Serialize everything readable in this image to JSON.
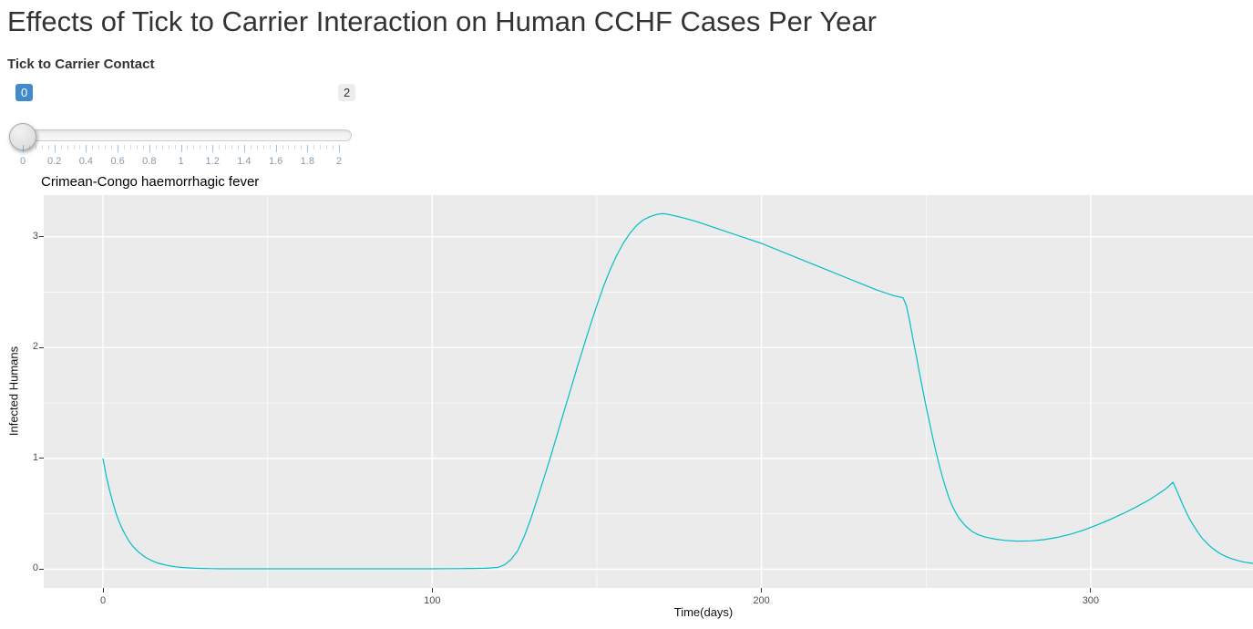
{
  "page": {
    "title": "Effects of Tick to Carrier Interaction on Human CCHF Cases Per Year"
  },
  "slider": {
    "label": "Tick to Carrier Contact",
    "value": "0",
    "max": "2",
    "tick_labels": [
      "0",
      "0.2",
      "0.4",
      "0.6",
      "0.8",
      "1",
      "1.2",
      "1.4",
      "1.6",
      "1.8",
      "2"
    ],
    "minor_ticks_per_interval": 4,
    "accent_color": "#428bca"
  },
  "chart_data": {
    "type": "line",
    "title": "Crimean-Congo haemorrhagic fever",
    "xlabel": "Time(days)",
    "ylabel": "Infected Humans",
    "x_ticks": [
      0,
      100,
      200,
      300
    ],
    "x_minor_ticks": [
      50,
      150,
      250,
      350
    ],
    "y_ticks": [
      0,
      1,
      2,
      3
    ],
    "y_minor_ticks": [
      0.5,
      1.5,
      2.5
    ],
    "xlim": [
      -18,
      349.3
    ],
    "ylim": [
      -0.169,
      3.376
    ],
    "grid": true,
    "legend": "none",
    "panel_color": "#EBEBEB",
    "grid_color": "#FFFFFF",
    "line_color": "#00BFC4",
    "tick_label_color": "#4d4d4d",
    "series": [
      {
        "name": "Infected Humans",
        "points": [
          [
            0,
            1.0
          ],
          [
            1,
            0.84
          ],
          [
            2,
            0.71
          ],
          [
            3,
            0.6
          ],
          [
            4,
            0.5
          ],
          [
            5,
            0.42
          ],
          [
            6,
            0.355
          ],
          [
            7,
            0.3
          ],
          [
            8,
            0.25
          ],
          [
            9,
            0.21
          ],
          [
            10,
            0.178
          ],
          [
            11,
            0.15
          ],
          [
            12,
            0.127
          ],
          [
            13,
            0.106
          ],
          [
            14,
            0.09
          ],
          [
            15,
            0.075
          ],
          [
            16,
            0.063
          ],
          [
            17,
            0.053
          ],
          [
            18,
            0.045
          ],
          [
            19,
            0.038
          ],
          [
            20,
            0.032
          ],
          [
            22,
            0.023
          ],
          [
            24,
            0.016
          ],
          [
            26,
            0.012
          ],
          [
            28,
            0.009
          ],
          [
            30,
            0.007
          ],
          [
            33,
            0.005
          ],
          [
            36,
            0.004
          ],
          [
            40,
            0.004
          ],
          [
            50,
            0.004
          ],
          [
            60,
            0.004
          ],
          [
            70,
            0.004
          ],
          [
            80,
            0.004
          ],
          [
            90,
            0.004
          ],
          [
            100,
            0.004
          ],
          [
            108,
            0.005
          ],
          [
            113,
            0.007
          ],
          [
            116,
            0.009
          ],
          [
            118,
            0.012
          ],
          [
            120,
            0.018
          ],
          [
            122,
            0.04
          ],
          [
            124,
            0.09
          ],
          [
            126,
            0.17
          ],
          [
            128,
            0.3
          ],
          [
            130,
            0.46
          ],
          [
            132,
            0.64
          ],
          [
            134,
            0.83
          ],
          [
            136,
            1.02
          ],
          [
            138,
            1.22
          ],
          [
            140,
            1.42
          ],
          [
            142,
            1.62
          ],
          [
            144,
            1.82
          ],
          [
            146,
            2.01
          ],
          [
            148,
            2.2
          ],
          [
            150,
            2.38
          ],
          [
            152,
            2.55
          ],
          [
            154,
            2.7
          ],
          [
            156,
            2.83
          ],
          [
            158,
            2.94
          ],
          [
            160,
            3.03
          ],
          [
            162,
            3.1
          ],
          [
            164,
            3.15
          ],
          [
            166,
            3.18
          ],
          [
            168,
            3.2
          ],
          [
            170,
            3.21
          ],
          [
            172,
            3.2
          ],
          [
            175,
            3.18
          ],
          [
            180,
            3.14
          ],
          [
            185,
            3.09
          ],
          [
            190,
            3.04
          ],
          [
            195,
            2.99
          ],
          [
            200,
            2.94
          ],
          [
            205,
            2.88
          ],
          [
            210,
            2.82
          ],
          [
            215,
            2.76
          ],
          [
            220,
            2.7
          ],
          [
            225,
            2.64
          ],
          [
            230,
            2.58
          ],
          [
            235,
            2.52
          ],
          [
            240,
            2.47
          ],
          [
            243,
            2.45
          ],
          [
            244,
            2.38
          ],
          [
            245,
            2.24
          ],
          [
            246,
            2.08
          ],
          [
            247,
            1.93
          ],
          [
            248,
            1.77
          ],
          [
            249,
            1.62
          ],
          [
            250,
            1.47
          ],
          [
            251,
            1.33
          ],
          [
            252,
            1.19
          ],
          [
            253,
            1.06
          ],
          [
            254,
            0.94
          ],
          [
            255,
            0.83
          ],
          [
            256,
            0.73
          ],
          [
            257,
            0.64
          ],
          [
            258,
            0.57
          ],
          [
            259,
            0.51
          ],
          [
            260,
            0.46
          ],
          [
            262,
            0.39
          ],
          [
            264,
            0.34
          ],
          [
            266,
            0.31
          ],
          [
            268,
            0.29
          ],
          [
            271,
            0.272
          ],
          [
            274,
            0.26
          ],
          [
            278,
            0.253
          ],
          [
            282,
            0.256
          ],
          [
            286,
            0.268
          ],
          [
            290,
            0.288
          ],
          [
            294,
            0.317
          ],
          [
            298,
            0.355
          ],
          [
            302,
            0.4
          ],
          [
            306,
            0.45
          ],
          [
            310,
            0.505
          ],
          [
            314,
            0.565
          ],
          [
            318,
            0.63
          ],
          [
            321,
            0.69
          ],
          [
            323,
            0.73
          ],
          [
            325,
            0.785
          ],
          [
            326,
            0.72
          ],
          [
            327,
            0.65
          ],
          [
            328,
            0.58
          ],
          [
            329,
            0.515
          ],
          [
            330,
            0.455
          ],
          [
            331,
            0.405
          ],
          [
            332,
            0.36
          ],
          [
            333,
            0.315
          ],
          [
            334,
            0.275
          ],
          [
            335,
            0.245
          ],
          [
            336,
            0.215
          ],
          [
            337,
            0.19
          ],
          [
            338,
            0.168
          ],
          [
            339,
            0.148
          ],
          [
            340,
            0.13
          ],
          [
            341,
            0.116
          ],
          [
            342,
            0.104
          ],
          [
            343,
            0.093
          ],
          [
            344,
            0.084
          ],
          [
            345,
            0.076
          ],
          [
            346,
            0.069
          ],
          [
            347,
            0.063
          ],
          [
            348,
            0.058
          ],
          [
            349,
            0.054
          ],
          [
            350,
            0.05
          ]
        ]
      }
    ]
  }
}
